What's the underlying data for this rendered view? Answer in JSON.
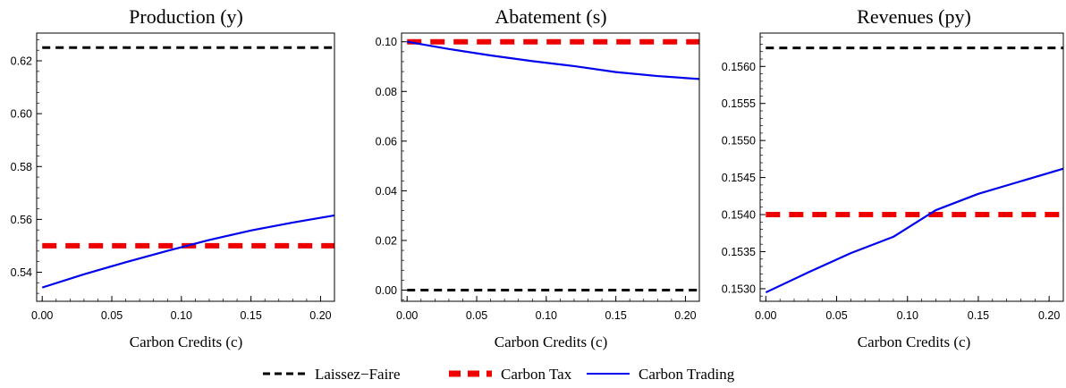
{
  "chart_data": [
    {
      "type": "line",
      "title": "Production (y)",
      "xlabel": "Carbon Credits (c)",
      "ylabel": "",
      "xlim": [
        -0.004,
        0.21
      ],
      "ylim": [
        0.529,
        0.6305
      ],
      "xticks": [
        0.0,
        0.05,
        0.1,
        0.15,
        0.2
      ],
      "xtick_labels": [
        "0.00",
        "0.05",
        "0.10",
        "0.15",
        "0.20"
      ],
      "yticks": [
        0.54,
        0.56,
        0.58,
        0.6,
        0.62
      ],
      "ytick_labels": [
        "0.54",
        "0.56",
        "0.58",
        "0.60",
        "0.62"
      ],
      "series": [
        {
          "name": "Laissez−Faire",
          "x": [
            0,
            0.21
          ],
          "values": [
            0.625,
            0.625
          ]
        },
        {
          "name": "Carbon Tax",
          "x": [
            0,
            0.21
          ],
          "values": [
            0.55,
            0.55
          ]
        },
        {
          "name": "Carbon Trading",
          "x": [
            0,
            0.03,
            0.06,
            0.09,
            0.12,
            0.15,
            0.18,
            0.21
          ],
          "values": [
            0.5342,
            0.5392,
            0.5438,
            0.5481,
            0.5522,
            0.5558,
            0.5588,
            0.5615
          ]
        }
      ]
    },
    {
      "type": "line",
      "title": "Abatement (s)",
      "xlabel": "Carbon Credits (c)",
      "ylabel": "",
      "xlim": [
        -0.004,
        0.21
      ],
      "ylim": [
        -0.0045,
        0.1035
      ],
      "xticks": [
        0.0,
        0.05,
        0.1,
        0.15,
        0.2
      ],
      "xtick_labels": [
        "0.00",
        "0.05",
        "0.10",
        "0.15",
        "0.20"
      ],
      "yticks": [
        0.0,
        0.02,
        0.04,
        0.06,
        0.08,
        0.1
      ],
      "ytick_labels": [
        "0.00",
        "0.02",
        "0.04",
        "0.06",
        "0.08",
        "0.10"
      ],
      "series": [
        {
          "name": "Laissez−Faire",
          "x": [
            0,
            0.21
          ],
          "values": [
            0.0,
            0.0
          ]
        },
        {
          "name": "Carbon Tax",
          "x": [
            0,
            0.21
          ],
          "values": [
            0.1,
            0.1
          ]
        },
        {
          "name": "Carbon Trading",
          "x": [
            0,
            0.03,
            0.06,
            0.09,
            0.12,
            0.15,
            0.18,
            0.21
          ],
          "values": [
            0.1,
            0.0971,
            0.0945,
            0.0922,
            0.0902,
            0.0878,
            0.0862,
            0.085
          ]
        }
      ]
    },
    {
      "type": "line",
      "title": "Revenues (py)",
      "xlabel": "Carbon Credits (c)",
      "ylabel": "",
      "xlim": [
        -0.004,
        0.21
      ],
      "ylim": [
        0.15283,
        0.15645
      ],
      "xticks": [
        0.0,
        0.05,
        0.1,
        0.15,
        0.2
      ],
      "xtick_labels": [
        "0.00",
        "0.05",
        "0.10",
        "0.15",
        "0.20"
      ],
      "yticks": [
        0.153,
        0.1535,
        0.154,
        0.1545,
        0.155,
        0.1555,
        0.156
      ],
      "ytick_labels": [
        "0.1530",
        "0.1535",
        "0.1540",
        "0.1545",
        "0.1550",
        "0.1555",
        "0.1560"
      ],
      "series": [
        {
          "name": "Laissez−Faire",
          "x": [
            0,
            0.21
          ],
          "values": [
            0.15625,
            0.15625
          ]
        },
        {
          "name": "Carbon Tax",
          "x": [
            0,
            0.21
          ],
          "values": [
            0.154,
            0.154
          ]
        },
        {
          "name": "Carbon Trading",
          "x": [
            0,
            0.03,
            0.06,
            0.09,
            0.12,
            0.15,
            0.18,
            0.21
          ],
          "values": [
            0.15295,
            0.15322,
            0.15348,
            0.1537,
            0.15406,
            0.15428,
            0.15445,
            0.15462
          ]
        }
      ]
    }
  ],
  "legend": {
    "placement": "bottom-center",
    "items": [
      {
        "label": "Laissez−Faire",
        "color": "#000000",
        "style": "dashed"
      },
      {
        "label": "Carbon Tax",
        "color": "#ee0000",
        "style": "thick-dashed"
      },
      {
        "label": "Carbon Trading",
        "color": "#0000ee",
        "style": "solid"
      }
    ]
  },
  "colors": {
    "laissez_faire": "#000000",
    "carbon_tax": "#ee0000",
    "carbon_trading": "#0000ee"
  }
}
